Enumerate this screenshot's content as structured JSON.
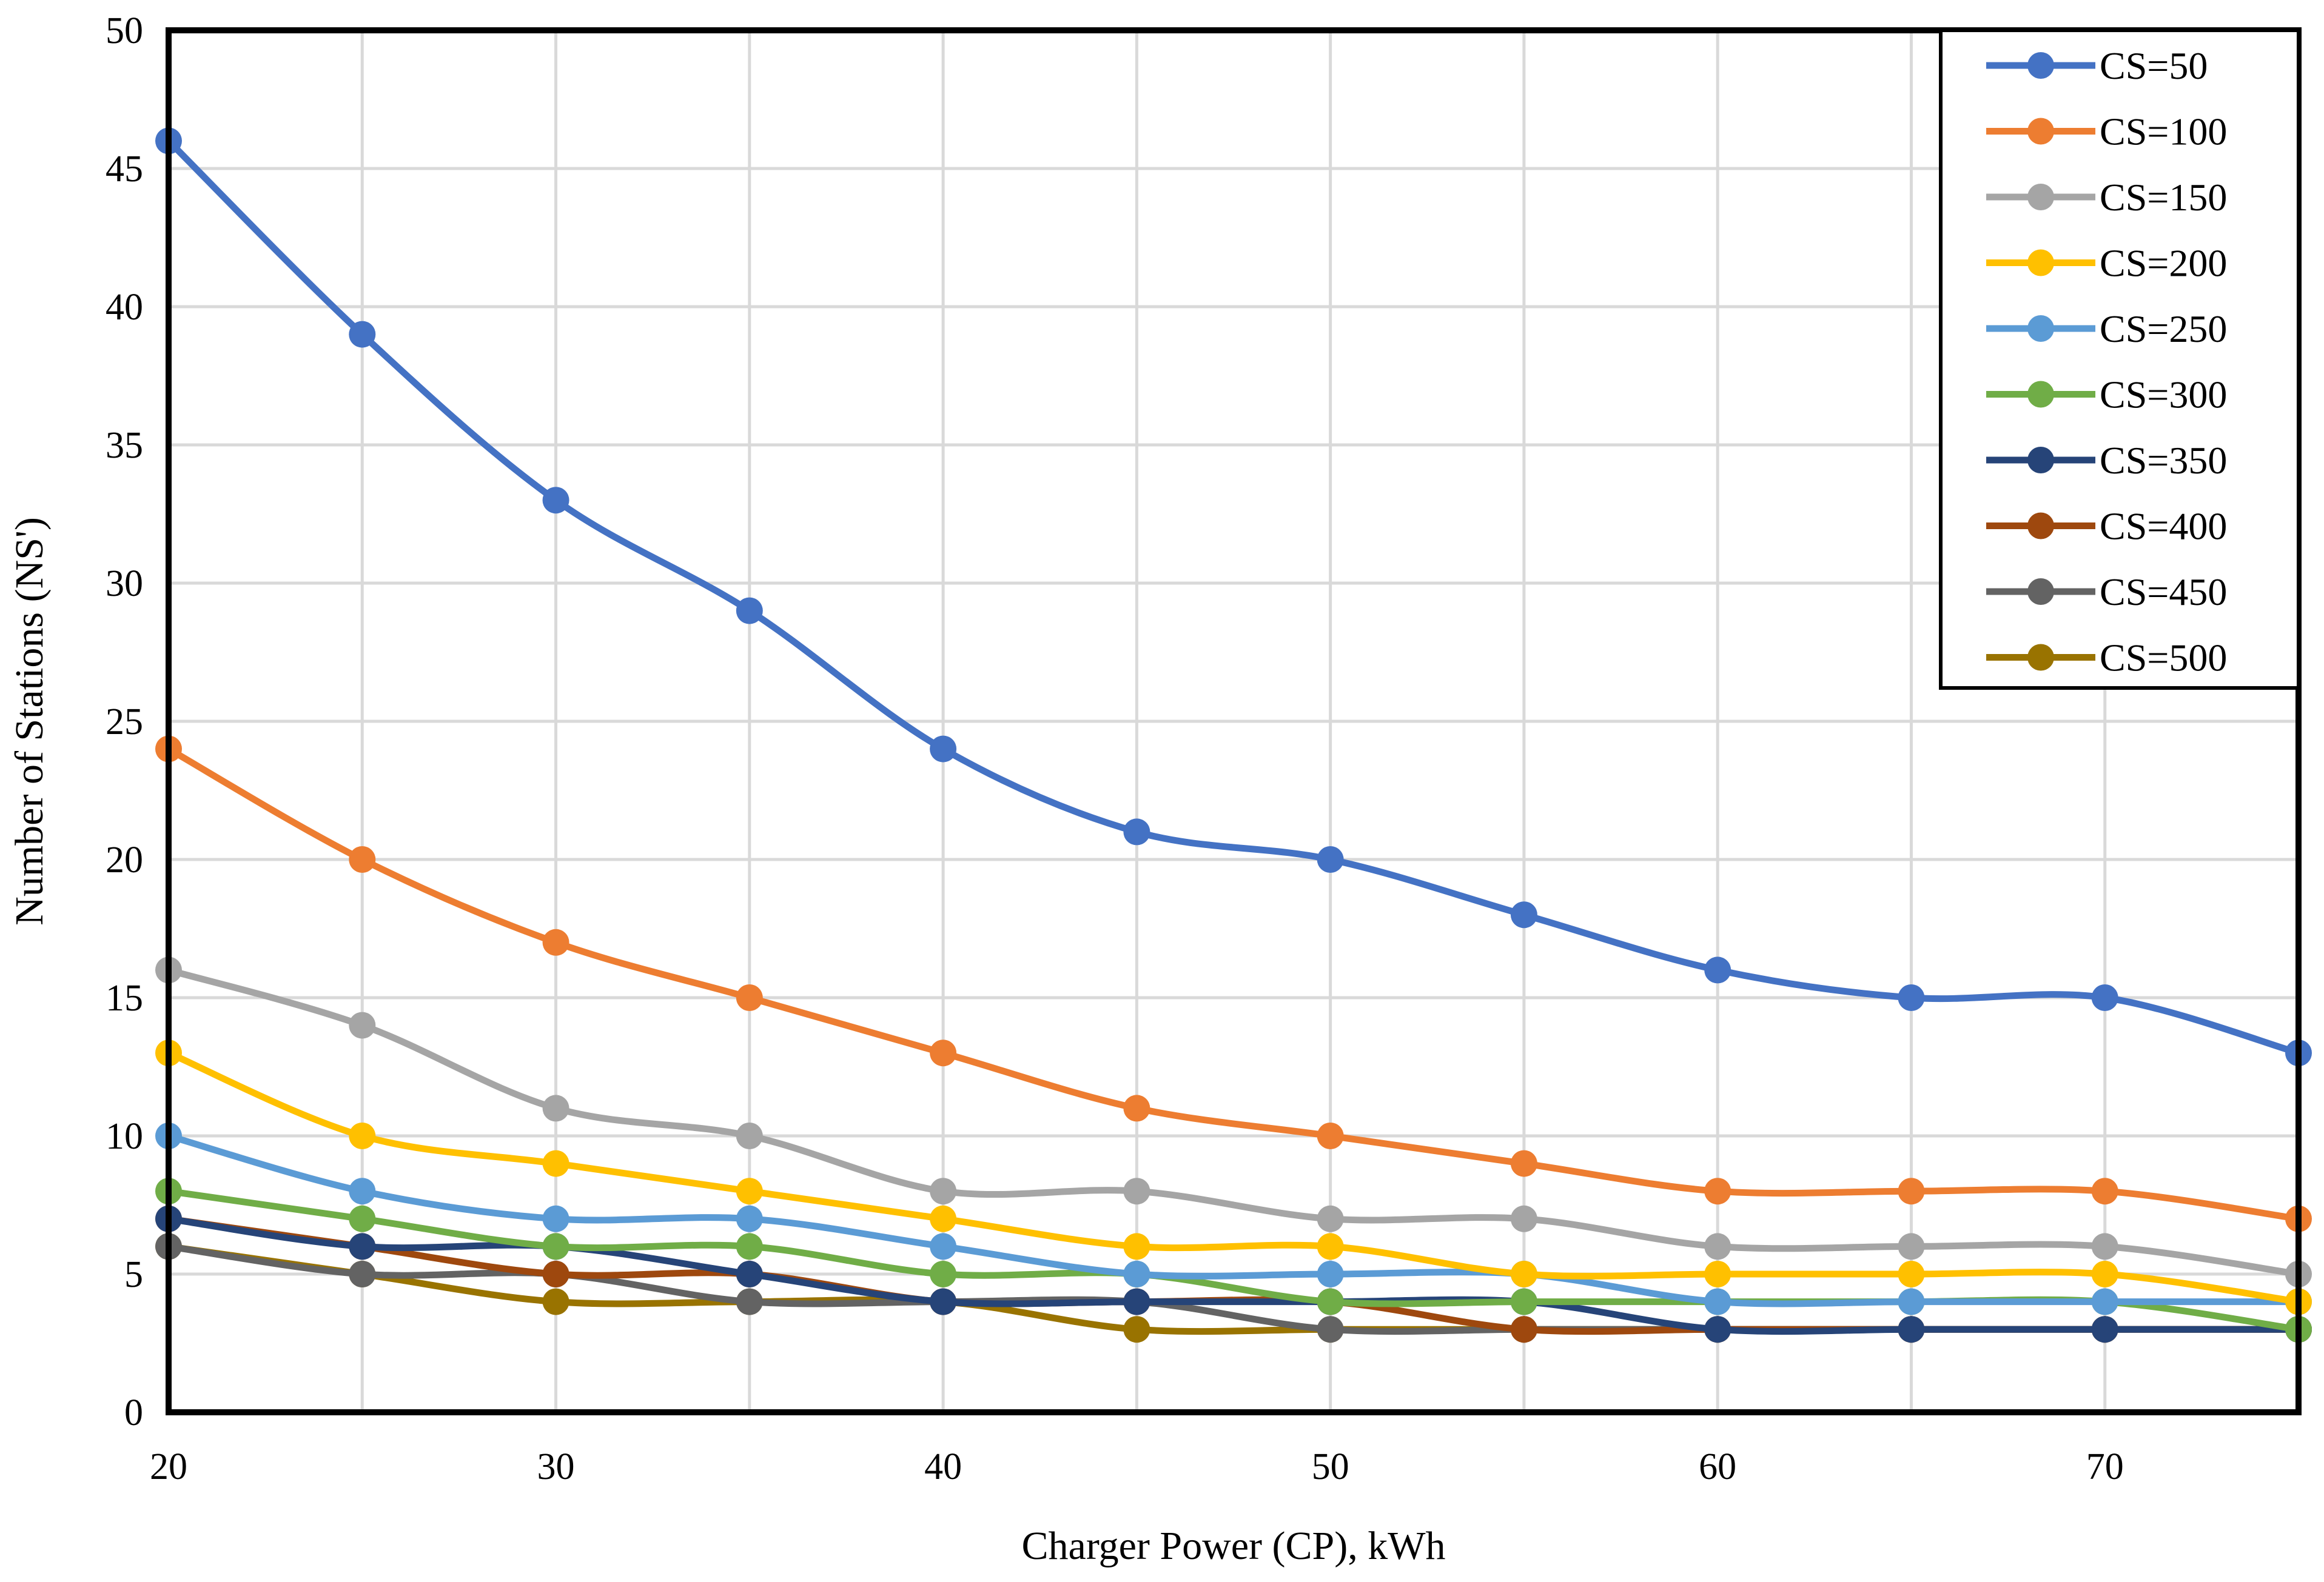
{
  "chart_data": {
    "type": "line",
    "title": "",
    "xlabel": "Charger Power (CP), kWh",
    "ylabel": "Number of Stations (NS')",
    "x": [
      20,
      25,
      30,
      35,
      40,
      45,
      50,
      55,
      60,
      65,
      70,
      75
    ],
    "xlim": [
      20,
      75
    ],
    "ylim": [
      0,
      50
    ],
    "xticks": [
      "20",
      "30",
      "40",
      "50",
      "60",
      "70"
    ],
    "xtick_values": [
      20,
      30,
      40,
      50,
      60,
      70
    ],
    "yticks": [
      "0",
      "5",
      "10",
      "15",
      "20",
      "25",
      "30",
      "35",
      "40",
      "45",
      "50"
    ],
    "ytick_values": [
      0,
      5,
      10,
      15,
      20,
      25,
      30,
      35,
      40,
      45,
      50
    ],
    "vertical_gridlines_at": [
      20,
      25,
      30,
      35,
      40,
      45,
      50,
      55,
      60,
      65,
      70,
      75
    ],
    "grid": true,
    "legend_position": "top-right",
    "smooth": true,
    "series": [
      {
        "name": "CS=50",
        "color": "#4472C4",
        "values": [
          46,
          39,
          33,
          29,
          24,
          21,
          20,
          18,
          16,
          15,
          15,
          13
        ]
      },
      {
        "name": "CS=100",
        "color": "#ED7D31",
        "values": [
          24,
          20,
          17,
          15,
          13,
          11,
          10,
          9,
          8,
          8,
          8,
          7
        ]
      },
      {
        "name": "CS=150",
        "color": "#A5A5A5",
        "values": [
          16,
          14,
          11,
          10,
          8,
          8,
          7,
          7,
          6,
          6,
          6,
          5
        ]
      },
      {
        "name": "CS=200",
        "color": "#FFC000",
        "values": [
          13,
          10,
          9,
          8,
          7,
          6,
          6,
          5,
          5,
          5,
          5,
          4
        ]
      },
      {
        "name": "CS=250",
        "color": "#5B9BD5",
        "values": [
          10,
          8,
          7,
          7,
          6,
          5,
          5,
          5,
          4,
          4,
          4,
          4
        ]
      },
      {
        "name": "CS=300",
        "color": "#70AD47",
        "values": [
          8,
          7,
          6,
          6,
          5,
          5,
          4,
          4,
          4,
          4,
          4,
          3
        ]
      },
      {
        "name": "CS=350",
        "color": "#264478",
        "values": [
          7,
          6,
          6,
          5,
          4,
          4,
          4,
          4,
          3,
          3,
          3,
          3
        ]
      },
      {
        "name": "CS=400",
        "color": "#9E480E",
        "values": [
          7,
          6,
          5,
          5,
          4,
          4,
          4,
          3,
          3,
          3,
          3,
          3
        ]
      },
      {
        "name": "CS=450",
        "color": "#636363",
        "values": [
          6,
          5,
          5,
          4,
          4,
          4,
          3,
          3,
          3,
          3,
          3,
          3
        ]
      },
      {
        "name": "CS=500",
        "color": "#997300",
        "values": [
          6,
          5,
          4,
          4,
          4,
          3,
          3,
          3,
          3,
          3,
          3,
          3
        ]
      }
    ]
  }
}
